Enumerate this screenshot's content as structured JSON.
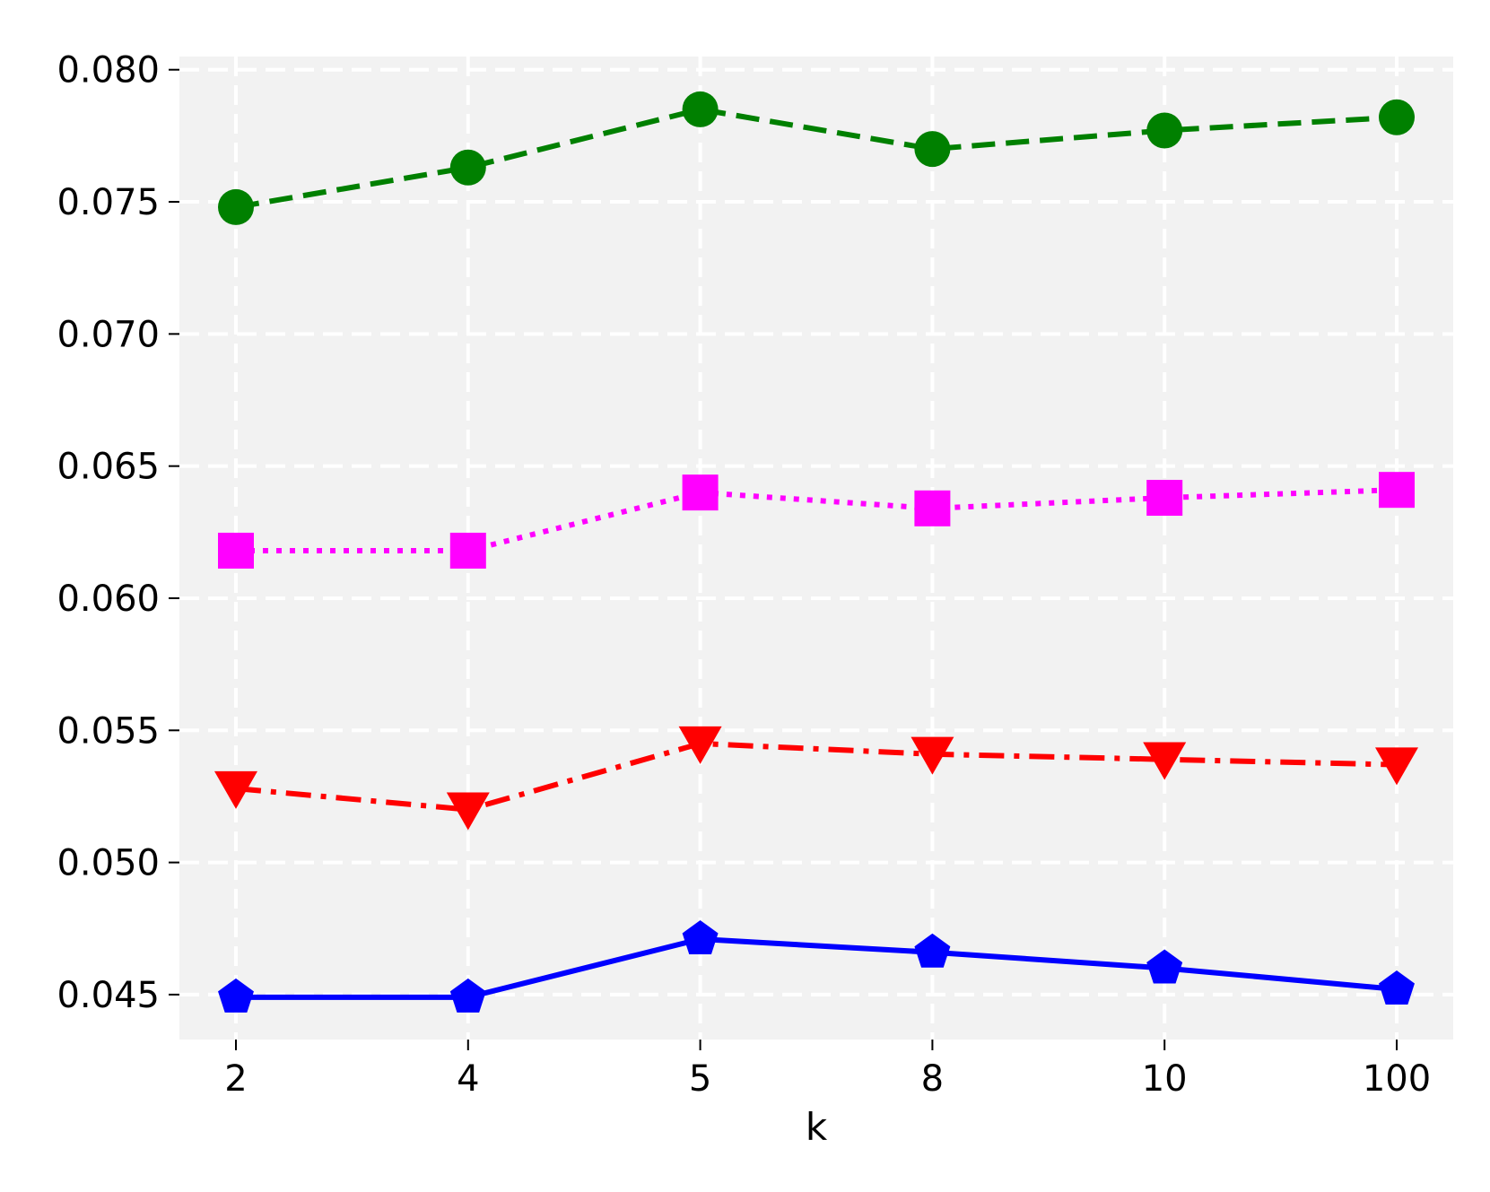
{
  "chart_data": {
    "type": "line",
    "title": "",
    "xlabel": "k",
    "ylabel": "",
    "categories": [
      "2",
      "4",
      "5",
      "8",
      "10",
      "100"
    ],
    "ylim": [
      0.0433,
      0.0805
    ],
    "yticks": [
      "0.045",
      "0.050",
      "0.055",
      "0.060",
      "0.065",
      "0.070",
      "0.075",
      "0.080"
    ],
    "grid": true,
    "grid_style": "dashed",
    "background": "#f2f2f2",
    "legend": "none",
    "series": [
      {
        "values": [
          0.0748,
          0.0763,
          0.0785,
          0.077,
          0.0777,
          0.0782
        ],
        "color": "#008000",
        "linestyle": "dashed",
        "marker": "circle"
      },
      {
        "values": [
          0.0618,
          0.0618,
          0.064,
          0.0634,
          0.0638,
          0.0641
        ],
        "color": "#ff00ff",
        "linestyle": "dotted",
        "marker": "square"
      },
      {
        "values": [
          0.0528,
          0.052,
          0.0545,
          0.0541,
          0.0539,
          0.0537
        ],
        "color": "#ff0000",
        "linestyle": "dashdot",
        "marker": "triangle-down"
      },
      {
        "values": [
          0.0449,
          0.0449,
          0.0471,
          0.0466,
          0.046,
          0.0452
        ],
        "color": "#0000ff",
        "linestyle": "solid",
        "marker": "pentagon"
      }
    ]
  }
}
